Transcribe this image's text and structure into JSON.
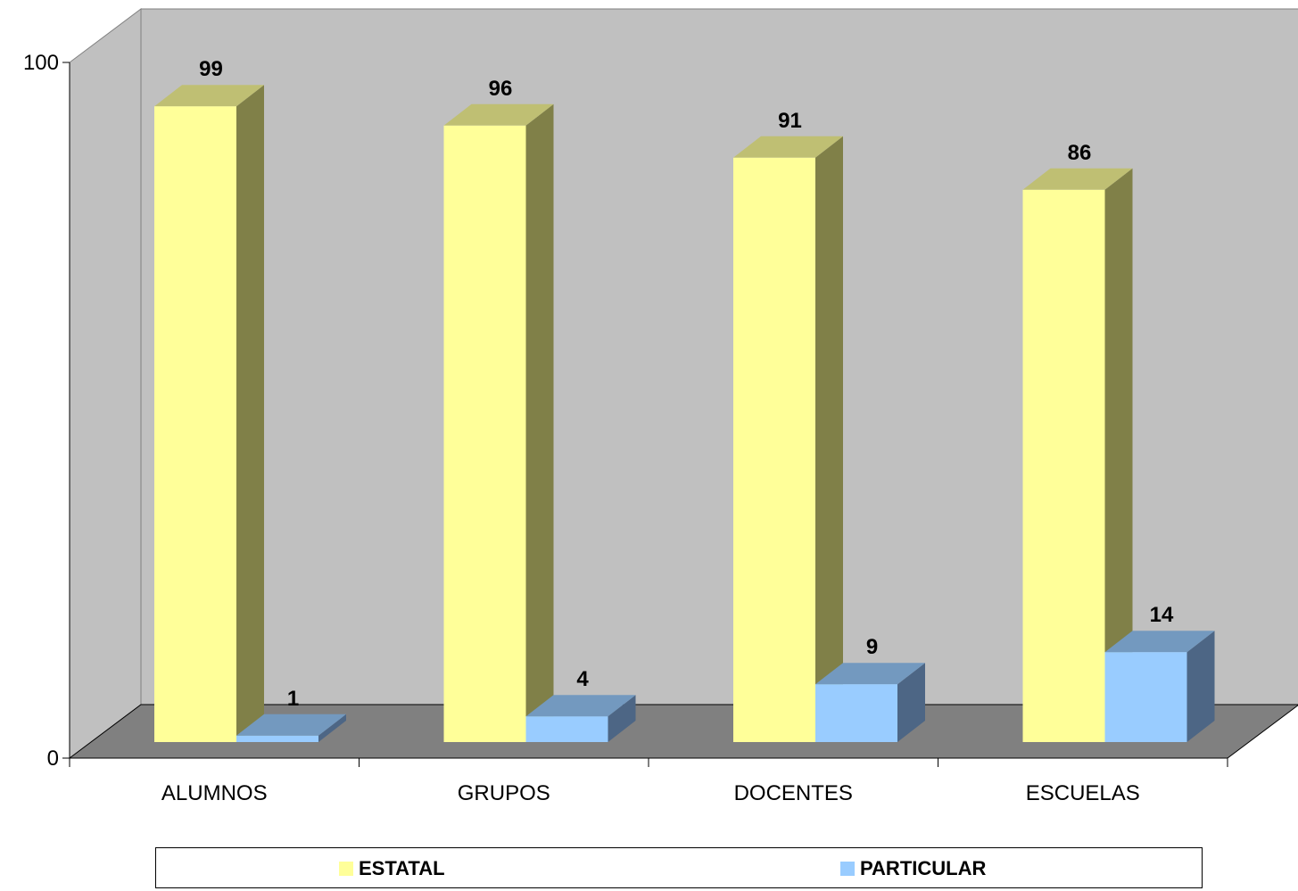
{
  "chart_data": {
    "type": "bar",
    "categories": [
      "ALUMNOS",
      "GRUPOS",
      "DOCENTES",
      "ESCUELAS"
    ],
    "series": [
      {
        "name": "ESTATAL",
        "values": [
          99,
          96,
          91,
          86
        ],
        "color": "#FFFF99",
        "side_color": "#808048",
        "top_color": "#BFBF73"
      },
      {
        "name": "PARTICULAR",
        "values": [
          1,
          4,
          9,
          14
        ],
        "color": "#99CCFF",
        "side_color": "#4D6685",
        "top_color": "#7399BF"
      }
    ],
    "ylim": [
      0,
      100
    ],
    "yticks": [
      "0",
      "100"
    ],
    "grid": false,
    "legend_position": "bottom",
    "wall_color": "#C0C0C0",
    "floor_color": "#808080"
  }
}
